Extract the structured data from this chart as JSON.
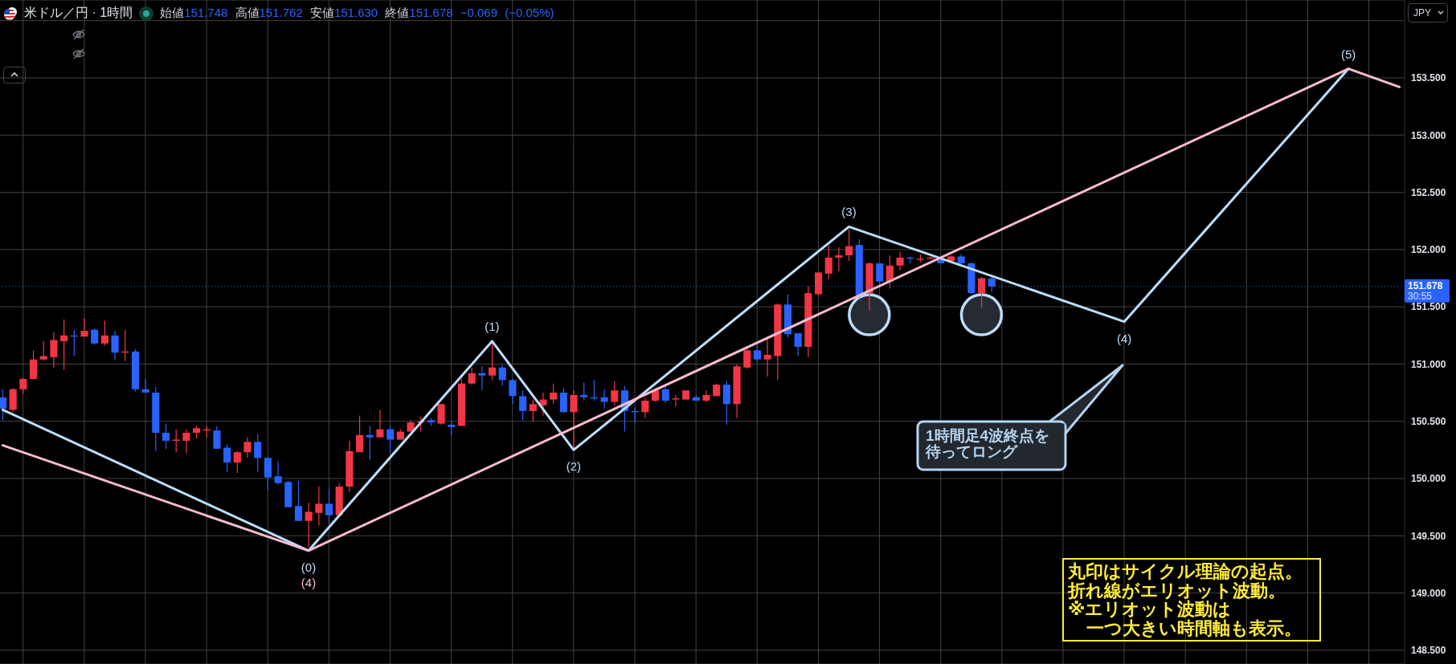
{
  "chart_data": {
    "type": "candlestick",
    "title": "米ドル／円 · 1時間",
    "subtitle": "始値151.748 高値151.762 安値151.630 終値151.678 −0.069 (−0.05%)",
    "ylabel": "JPY",
    "categories": [
      null,
      null,
      null,
      null,
      null,
      null,
      null,
      null,
      null,
      null,
      null,
      null,
      null,
      null,
      null,
      null,
      null,
      null,
      null,
      null,
      null,
      null,
      null,
      null,
      null,
      null,
      null,
      null,
      null,
      null,
      null,
      null,
      null,
      null,
      null,
      null,
      null,
      null,
      null,
      null,
      null,
      null,
      null,
      null,
      null,
      null,
      null,
      null,
      null,
      null,
      null,
      null,
      null,
      null,
      null,
      null,
      null,
      null,
      null,
      null,
      null,
      null,
      null,
      null,
      null,
      null,
      null,
      null,
      null,
      null,
      null,
      null,
      null,
      null,
      null,
      null,
      null,
      null,
      null,
      null,
      null,
      null,
      null,
      null,
      null,
      null,
      null,
      null,
      null,
      null,
      null,
      null,
      null,
      null,
      null,
      null,
      null,
      null,
      null,
      null,
      null,
      null,
      null,
      null,
      null,
      null,
      null,
      null,
      null,
      null,
      null,
      null,
      null,
      null,
      null,
      null,
      null,
      null,
      null,
      null,
      null,
      null,
      null,
      null,
      null,
      null,
      null,
      null,
      null,
      null,
      null,
      null,
      null,
      null,
      null,
      null,
      null,
      null
    ],
    "ohlc": [
      [
        150.71,
        150.78,
        150.51,
        150.61
      ],
      [
        150.6,
        150.79,
        150.58,
        150.78
      ],
      [
        150.78,
        150.88,
        150.74,
        150.87
      ],
      [
        150.87,
        151.12,
        150.87,
        151.04
      ],
      [
        151.04,
        151.2,
        151.03,
        151.07
      ],
      [
        151.06,
        151.28,
        150.97,
        151.21
      ],
      [
        151.2,
        151.39,
        150.95,
        151.25
      ],
      [
        151.25,
        151.3,
        151.07,
        151.24
      ],
      [
        151.24,
        151.4,
        151.24,
        151.29
      ],
      [
        151.3,
        151.31,
        151.17,
        151.18
      ],
      [
        151.18,
        151.38,
        151.16,
        151.25
      ],
      [
        151.25,
        151.29,
        151.04,
        151.1
      ],
      [
        151.1,
        151.3,
        151.03,
        151.11
      ],
      [
        151.11,
        151.13,
        150.76,
        150.78
      ],
      [
        150.78,
        150.87,
        150.75,
        150.75
      ],
      [
        150.75,
        150.8,
        150.24,
        150.4
      ],
      [
        150.4,
        150.48,
        150.26,
        150.33
      ],
      [
        150.33,
        150.43,
        150.23,
        150.34
      ],
      [
        150.33,
        150.43,
        150.22,
        150.4
      ],
      [
        150.4,
        150.46,
        150.35,
        150.44
      ],
      [
        150.42,
        150.46,
        150.36,
        150.43
      ],
      [
        150.42,
        150.46,
        150.26,
        150.26
      ],
      [
        150.27,
        150.3,
        150.06,
        150.14
      ],
      [
        150.14,
        150.24,
        150.05,
        150.23
      ],
      [
        150.23,
        150.36,
        150.18,
        150.32
      ],
      [
        150.32,
        150.39,
        150.06,
        150.18
      ],
      [
        150.18,
        150.19,
        149.9,
        150.01
      ],
      [
        150.02,
        150.15,
        149.95,
        149.96
      ],
      [
        149.97,
        149.98,
        149.75,
        149.75
      ],
      [
        149.76,
        149.98,
        149.63,
        149.63
      ],
      [
        149.63,
        149.79,
        149.4,
        149.71
      ],
      [
        149.7,
        149.93,
        149.59,
        149.78
      ],
      [
        149.78,
        149.91,
        149.61,
        149.68
      ],
      [
        149.68,
        149.96,
        149.67,
        149.93
      ],
      [
        149.93,
        150.33,
        149.88,
        150.24
      ],
      [
        150.23,
        150.55,
        150.23,
        150.38
      ],
      [
        150.38,
        150.46,
        150.16,
        150.36
      ],
      [
        150.36,
        150.6,
        150.36,
        150.43
      ],
      [
        150.43,
        150.46,
        150.22,
        150.34
      ],
      [
        150.34,
        150.43,
        150.34,
        150.41
      ],
      [
        150.41,
        150.51,
        150.41,
        150.49
      ],
      [
        150.49,
        150.54,
        150.41,
        150.5
      ],
      [
        150.51,
        150.53,
        150.46,
        150.49
      ],
      [
        150.48,
        150.65,
        150.47,
        150.65
      ],
      [
        150.47,
        150.5,
        150.38,
        150.45
      ],
      [
        150.46,
        150.87,
        150.46,
        150.83
      ],
      [
        150.83,
        150.97,
        150.82,
        150.92
      ],
      [
        150.92,
        150.98,
        150.77,
        150.9
      ],
      [
        150.9,
        151.19,
        150.86,
        150.97
      ],
      [
        150.97,
        150.99,
        150.81,
        150.86
      ],
      [
        150.86,
        150.87,
        150.65,
        150.72
      ],
      [
        150.72,
        150.77,
        150.51,
        150.59
      ],
      [
        150.59,
        150.69,
        150.5,
        150.65
      ],
      [
        150.64,
        150.75,
        150.55,
        150.69
      ],
      [
        150.69,
        150.83,
        150.65,
        150.75
      ],
      [
        150.75,
        150.79,
        150.57,
        150.58
      ],
      [
        150.58,
        150.77,
        150.26,
        150.73
      ],
      [
        150.73,
        150.84,
        150.68,
        150.71
      ],
      [
        150.71,
        150.86,
        150.68,
        150.7
      ],
      [
        150.71,
        150.78,
        150.61,
        150.67
      ],
      [
        150.67,
        150.85,
        150.64,
        150.77
      ],
      [
        150.77,
        150.81,
        150.41,
        150.59
      ],
      [
        150.59,
        150.62,
        150.49,
        150.58
      ],
      [
        150.58,
        150.7,
        150.53,
        150.68
      ],
      [
        150.68,
        150.79,
        150.67,
        150.77
      ],
      [
        150.78,
        150.81,
        150.66,
        150.68
      ],
      [
        150.69,
        150.73,
        150.63,
        150.7
      ],
      [
        150.69,
        150.77,
        150.69,
        150.77
      ],
      [
        150.71,
        150.73,
        150.68,
        150.68
      ],
      [
        150.68,
        150.77,
        150.67,
        150.73
      ],
      [
        150.72,
        150.83,
        150.72,
        150.82
      ],
      [
        150.82,
        150.85,
        150.47,
        150.65
      ],
      [
        150.65,
        151.0,
        150.53,
        150.98
      ],
      [
        150.97,
        151.14,
        150.96,
        151.12
      ],
      [
        151.12,
        151.17,
        151.01,
        151.04
      ],
      [
        151.04,
        151.22,
        150.89,
        151.08
      ],
      [
        151.07,
        151.53,
        150.86,
        151.52
      ],
      [
        151.52,
        151.61,
        151.23,
        151.26
      ],
      [
        151.27,
        151.27,
        151.07,
        151.15
      ],
      [
        151.15,
        151.68,
        151.06,
        151.62
      ],
      [
        151.61,
        151.8,
        151.6,
        151.8
      ],
      [
        151.79,
        152.04,
        151.74,
        151.93
      ],
      [
        151.93,
        152.02,
        151.81,
        151.95
      ],
      [
        151.95,
        152.18,
        151.9,
        152.03
      ],
      [
        152.04,
        152.09,
        151.58,
        151.6
      ],
      [
        151.62,
        151.89,
        151.47,
        151.88
      ],
      [
        151.88,
        151.88,
        151.7,
        151.72
      ],
      [
        151.72,
        151.95,
        151.66,
        151.86
      ],
      [
        151.86,
        151.98,
        151.82,
        151.93
      ],
      [
        151.93,
        151.94,
        151.88,
        151.92
      ],
      [
        151.91,
        151.96,
        151.89,
        151.92
      ],
      [
        151.92,
        151.94,
        151.92,
        151.93
      ],
      [
        151.92,
        151.92,
        151.88,
        151.88
      ],
      [
        151.9,
        151.95,
        151.9,
        151.94
      ],
      [
        151.94,
        151.96,
        151.87,
        151.88
      ],
      [
        151.88,
        151.89,
        151.61,
        151.62
      ],
      [
        151.62,
        151.76,
        151.49,
        151.75
      ],
      [
        151.748,
        151.762,
        151.63,
        151.678
      ],
      null,
      null,
      null,
      null,
      null,
      null,
      null,
      null,
      null,
      null,
      null,
      null,
      null,
      null,
      null,
      null,
      null,
      null,
      null,
      null,
      null,
      null,
      null,
      null,
      null,
      null,
      null,
      null,
      null,
      null,
      null,
      null,
      null,
      null,
      null,
      null,
      null,
      null,
      null,
      null
    ],
    "colors": [
      "#2962ff",
      "#f23645",
      "#f23645",
      "#f23645",
      "#f23645",
      "#f23645",
      "#f23645",
      "#2962ff",
      "#f23645",
      "#2962ff",
      "#f23645",
      "#2962ff",
      "#f23645",
      "#2962ff",
      "#2962ff",
      "#2962ff",
      "#2962ff",
      "#f23645",
      "#f23645",
      "#f23645",
      "#f23645",
      "#2962ff",
      "#2962ff",
      "#f23645",
      "#f23645",
      "#2962ff",
      "#2962ff",
      "#2962ff",
      "#2962ff",
      "#2962ff",
      "#f23645",
      "#f23645",
      "#2962ff",
      "#f23645",
      "#f23645",
      "#f23645",
      "#2962ff",
      "#f23645",
      "#2962ff",
      "#f23645",
      "#f23645",
      "#f23645",
      "#2962ff",
      "#f23645",
      "#2962ff",
      "#f23645",
      "#f23645",
      "#2962ff",
      "#f23645",
      "#2962ff",
      "#2962ff",
      "#2962ff",
      "#f23645",
      "#f23645",
      "#f23645",
      "#2962ff",
      "#f23645",
      "#2962ff",
      "#2962ff",
      "#2962ff",
      "#f23645",
      "#2962ff",
      "#2962ff",
      "#f23645",
      "#f23645",
      "#2962ff",
      "#f23645",
      "#f23645",
      "#2962ff",
      "#f23645",
      "#f23645",
      "#2962ff",
      "#f23645",
      "#f23645",
      "#2962ff",
      "#f23645",
      "#f23645",
      "#2962ff",
      "#2962ff",
      "#f23645",
      "#f23645",
      "#f23645",
      "#f23645",
      "#f23645",
      "#2962ff",
      "#f23645",
      "#2962ff",
      "#f23645",
      "#f23645",
      "#2962ff",
      "#f23645",
      "#f23645",
      "#2962ff",
      "#f23645",
      "#2962ff",
      "#2962ff",
      "#f23645",
      "#2962ff",
      null,
      null,
      null,
      null,
      null,
      null,
      null,
      null,
      null,
      null,
      null,
      null,
      null,
      null,
      null,
      null,
      null,
      null,
      null,
      null,
      null,
      null,
      null,
      null,
      null,
      null,
      null,
      null,
      null,
      null,
      null,
      null,
      null,
      null,
      null,
      null,
      null,
      null,
      null,
      null
    ],
    "series": [
      {
        "type": "line",
        "color": "#bbdefb",
        "values": [
          150.6,
          null,
          null,
          null,
          null,
          null,
          null,
          null,
          null,
          null,
          null,
          null,
          null,
          null,
          null,
          null,
          null,
          null,
          null,
          null,
          null,
          null,
          null,
          null,
          null,
          null,
          null,
          null,
          null,
          null,
          149.37,
          null,
          null,
          null,
          null,
          null,
          null,
          null,
          null,
          null,
          null,
          null,
          null,
          null,
          null,
          null,
          null,
          null,
          151.2,
          null,
          null,
          null,
          null,
          null,
          null,
          null,
          150.25,
          null,
          null,
          null,
          null,
          null,
          null,
          null,
          null,
          null,
          null,
          null,
          null,
          null,
          null,
          null,
          null,
          null,
          null,
          null,
          null,
          null,
          null,
          null,
          null,
          null,
          null,
          152.2,
          null,
          null,
          null,
          null,
          null,
          null,
          null,
          null,
          null,
          null,
          null,
          null,
          null,
          null,
          null,
          null,
          null,
          null,
          null,
          null,
          null,
          null,
          null,
          null,
          null,
          null,
          151.37,
          null,
          null,
          null,
          null,
          null,
          null,
          null,
          null,
          null,
          null,
          null,
          null,
          null,
          null,
          null,
          null,
          null,
          null,
          null,
          null,
          null,
          153.58,
          null,
          null,
          null,
          null,
          null
        ]
      },
      {
        "type": "line",
        "color": "#f8bbd0",
        "values": [
          150.29,
          null,
          null,
          null,
          null,
          null,
          null,
          null,
          null,
          null,
          null,
          null,
          null,
          null,
          null,
          null,
          null,
          null,
          null,
          null,
          null,
          null,
          null,
          null,
          null,
          null,
          null,
          null,
          null,
          null,
          149.37,
          null,
          null,
          null,
          null,
          null,
          null,
          null,
          null,
          null,
          null,
          null,
          null,
          null,
          null,
          null,
          null,
          null,
          null,
          null,
          null,
          null,
          null,
          null,
          null,
          null,
          null,
          null,
          null,
          null,
          null,
          null,
          null,
          null,
          null,
          null,
          null,
          null,
          null,
          null,
          null,
          null,
          null,
          null,
          null,
          null,
          null,
          null,
          null,
          null,
          null,
          null,
          null,
          null,
          null,
          null,
          null,
          null,
          null,
          null,
          null,
          null,
          null,
          null,
          null,
          null,
          null,
          null,
          null,
          null,
          null,
          null,
          null,
          null,
          null,
          null,
          null,
          null,
          null,
          null,
          null,
          null,
          null,
          null,
          null,
          null,
          null,
          null,
          null,
          null,
          null,
          null,
          null,
          null,
          null,
          null,
          null,
          null,
          null,
          null,
          null,
          null,
          153.58,
          null,
          null,
          null,
          null,
          153.42
        ]
      },
      {
        "type": "scatter",
        "color": "#262b33",
        "marker": "circle",
        "values": [
          null,
          null,
          null,
          null,
          null,
          null,
          null,
          null,
          null,
          null,
          null,
          null,
          null,
          null,
          null,
          null,
          null,
          null,
          null,
          null,
          null,
          null,
          null,
          null,
          null,
          null,
          null,
          null,
          null,
          null,
          null,
          null,
          null,
          null,
          null,
          null,
          null,
          null,
          null,
          null,
          null,
          null,
          null,
          null,
          null,
          null,
          null,
          null,
          null,
          null,
          null,
          null,
          null,
          null,
          null,
          null,
          null,
          null,
          null,
          null,
          null,
          null,
          null,
          null,
          null,
          null,
          null,
          null,
          null,
          null,
          null,
          null,
          null,
          null,
          null,
          null,
          null,
          null,
          null,
          null,
          null,
          null,
          null,
          null,
          null,
          151.43,
          null,
          null,
          null,
          null,
          null,
          null,
          null,
          null,
          null,
          null,
          151.43,
          null,
          null,
          null,
          null,
          null,
          null,
          null,
          null,
          null,
          null,
          null,
          null,
          null,
          null,
          null,
          null,
          null,
          null,
          null,
          null,
          null,
          null,
          null,
          null,
          null,
          null,
          null,
          null,
          null,
          null,
          null,
          null,
          null,
          null,
          null,
          null,
          null,
          null,
          null,
          null,
          null
        ]
      }
    ],
    "ylim": [
      148.38,
      154.18
    ],
    "yticks": [
      {
        "value": 148.5,
        "label": "148.500"
      },
      {
        "value": 149,
        "label": "149.000"
      },
      {
        "value": 149.5,
        "label": "149.500"
      },
      {
        "value": 150,
        "label": "150.000"
      },
      {
        "value": 150.5,
        "label": "150.500"
      },
      {
        "value": 151,
        "label": "151.000"
      },
      {
        "value": 151.5,
        "label": "151.500"
      },
      {
        "value": 152,
        "label": "152.000"
      },
      {
        "value": 152.5,
        "label": "152.500"
      },
      {
        "value": 153,
        "label": "153.000"
      },
      {
        "value": 153.5,
        "label": "153.500"
      },
      {
        "value": 154,
        "label": null
      }
    ],
    "grid": true,
    "tick_labels": "y",
    "ref_lines": [
      {
        "axis": "y",
        "value": 151.678,
        "label": "151.678",
        "color": "#2962ff",
        "line_style": "dotted"
      }
    ],
    "annotations": [
      "1時間足4波終点を待ってロング",
      "丸印はサイクル理論の起点。",
      "折れ線がエリオット波動。",
      "※エリオット波動は",
      "一つ大きい時間軸も表示。",
      "30:55",
      {
        "text": "(0)",
        "y": 149.37
      },
      {
        "text": "(4)",
        "y": 149.37
      },
      {
        "text": "(1)",
        "y": 151.2
      },
      {
        "text": "(2)",
        "y": 150.25
      },
      {
        "text": "(3)",
        "y": 152.2
      },
      {
        "text": "(4)",
        "y": 151.37
      },
      {
        "text": "(5)",
        "y": 153.58
      }
    ]
  }
}
